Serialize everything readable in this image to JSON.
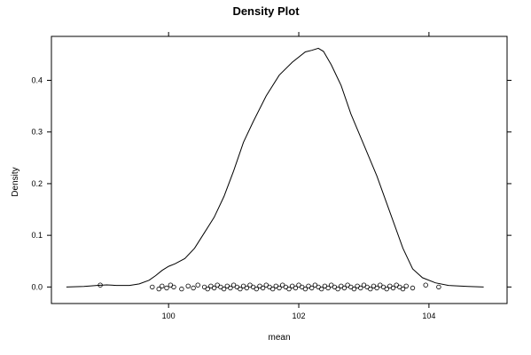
{
  "chart_data": {
    "type": "line",
    "title": "Density Plot",
    "xlabel": "mean",
    "ylabel": "Density",
    "xlim": [
      98.2,
      105.2
    ],
    "ylim": [
      -0.032,
      0.485
    ],
    "x_ticks": [
      100,
      102,
      104
    ],
    "y_ticks": [
      0.0,
      0.1,
      0.2,
      0.3,
      0.4
    ],
    "x_tick_labels": [
      "100",
      "102",
      "104"
    ],
    "y_tick_labels": [
      "0.0",
      "0.1",
      "0.2",
      "0.3",
      "0.4"
    ],
    "grid": false,
    "legend": "none",
    "series": [
      {
        "x": [
          98.43,
          98.7,
          98.9,
          99.05,
          99.2,
          99.4,
          99.55,
          99.7,
          99.8,
          99.9,
          100.0,
          100.1,
          100.25,
          100.4,
          100.55,
          100.7,
          100.85,
          101.0,
          101.15,
          101.3,
          101.5,
          101.7,
          101.9,
          102.1,
          102.2,
          102.3,
          102.38,
          102.5,
          102.65,
          102.8,
          103.0,
          103.2,
          103.4,
          103.6,
          103.75,
          103.9,
          104.1,
          104.3,
          104.6,
          104.84
        ],
        "y": [
          0.0,
          0.001,
          0.003,
          0.004,
          0.003,
          0.003,
          0.006,
          0.013,
          0.022,
          0.032,
          0.04,
          0.045,
          0.055,
          0.075,
          0.105,
          0.135,
          0.175,
          0.225,
          0.28,
          0.32,
          0.37,
          0.41,
          0.435,
          0.455,
          0.458,
          0.462,
          0.456,
          0.43,
          0.39,
          0.335,
          0.275,
          0.215,
          0.145,
          0.075,
          0.035,
          0.018,
          0.008,
          0.003,
          0.001,
          0.0
        ]
      }
    ],
    "rug_points": {
      "y": 0.0,
      "x": [
        98.95,
        99.75,
        99.85,
        99.9,
        99.97,
        100.03,
        100.08,
        100.2,
        100.3,
        100.38,
        100.45,
        100.55,
        100.6,
        100.65,
        100.7,
        100.75,
        100.8,
        100.85,
        100.9,
        100.95,
        101.0,
        101.05,
        101.1,
        101.15,
        101.2,
        101.25,
        101.3,
        101.35,
        101.4,
        101.45,
        101.5,
        101.55,
        101.6,
        101.65,
        101.7,
        101.75,
        101.8,
        101.85,
        101.9,
        101.95,
        102.0,
        102.05,
        102.1,
        102.15,
        102.2,
        102.25,
        102.3,
        102.35,
        102.4,
        102.45,
        102.5,
        102.55,
        102.6,
        102.65,
        102.7,
        102.75,
        102.8,
        102.85,
        102.9,
        102.95,
        103.0,
        103.05,
        103.1,
        103.15,
        103.2,
        103.25,
        103.3,
        103.35,
        103.4,
        103.45,
        103.5,
        103.55,
        103.6,
        103.65,
        103.75,
        103.95,
        104.15
      ]
    }
  }
}
